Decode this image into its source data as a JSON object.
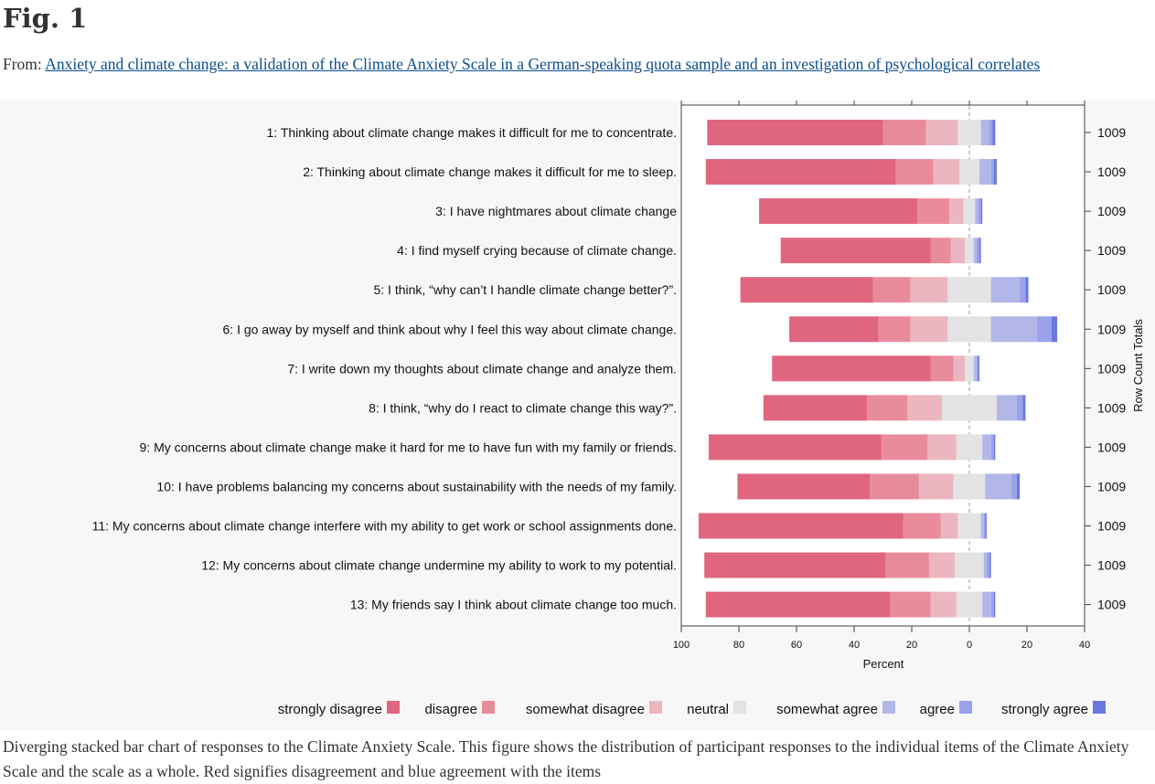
{
  "header": {
    "fig_title": "Fig. 1",
    "from_prefix": "From: ",
    "article_link": "Anxiety and climate change: a validation of the Climate Anxiety Scale in a German-speaking quota sample and an investigation of psychological correlates"
  },
  "caption": "Diverging stacked bar chart of responses to the Climate Anxiety Scale. This figure shows the distribution of participant responses to the individual items of the Climate Anxiety Scale and the scale as a whole. Red signifies disagreement and blue agreement with the items",
  "colors": {
    "strongly_disagree": "#e0667f",
    "disagree": "#e88c9c",
    "somewhat_disagree": "#ebb6bf",
    "neutral": "#e3e3e3",
    "somewhat_agree": "#b3b7e8",
    "agree": "#9aa2ea",
    "strongly_agree": "#6b78e0"
  },
  "chart_data": {
    "type": "bar",
    "subtype": "diverging-stacked-horizontal",
    "xlabel": "Percent",
    "right_axis_label": "Row Count Totals",
    "xlim": [
      -100,
      40
    ],
    "x_ticks": [
      -100,
      -80,
      -60,
      -40,
      -20,
      0,
      20,
      40
    ],
    "x_tick_labels": [
      "100",
      "80",
      "60",
      "40",
      "20",
      "0",
      "20",
      "40"
    ],
    "grid": false,
    "legend_position": "bottom",
    "series": [
      {
        "name": "strongly disagree",
        "values": [
          61,
          66,
          55,
          52,
          46,
          31,
          55,
          36,
          60,
          46,
          71,
          63,
          64
        ]
      },
      {
        "name": "disagree",
        "values": [
          15,
          13,
          11,
          7,
          13,
          11,
          8,
          14,
          16,
          17,
          13,
          15,
          14
        ]
      },
      {
        "name": "somewhat disagree",
        "values": [
          11,
          9,
          5,
          5,
          13,
          13,
          4,
          12,
          10,
          12,
          6,
          9,
          9
        ]
      },
      {
        "name": "neutral",
        "values": [
          8,
          7,
          4,
          3,
          15,
          15,
          3,
          19,
          9,
          11,
          8,
          10,
          9
        ]
      },
      {
        "name": "somewhat agree",
        "values": [
          3,
          4,
          1,
          1,
          10,
          16,
          1,
          7,
          3,
          9,
          1,
          1,
          3
        ]
      },
      {
        "name": "agree",
        "values": [
          1,
          1,
          1,
          1,
          2,
          5,
          0.5,
          2,
          1,
          2,
          0.5,
          1,
          1
        ]
      },
      {
        "name": "strongly agree",
        "values": [
          1,
          1,
          0.5,
          0.5,
          1,
          2,
          0.5,
          1,
          0.5,
          1,
          0.5,
          0.5,
          0.5
        ]
      }
    ],
    "items": [
      "1: Thinking about climate change makes it difficult for me to concentrate.",
      "2: Thinking about climate change makes it difficult for me to sleep.",
      "3: I have nightmares about climate change",
      "4: I find myself crying because of climate change.",
      "5: I think, “why can’t I handle climate change better?”.",
      "6: I go away by myself and think about why I feel this way about climate change.",
      "7: I write down my thoughts about climate change and analyze them.",
      "8: I think, “why do I react to climate change this way?”.",
      "9: My concerns about climate change make it hard for me to have fun with my family or friends.",
      "10: I have problems balancing my concerns about sustainability with the needs of my family.",
      "11: My concerns about climate change interfere with my ability to get work or school assignments done.",
      "12: My concerns about climate change undermine my ability to work to my potential.",
      "13: My friends say I think about climate change too much."
    ],
    "row_totals": [
      "1009",
      "1009",
      "1009",
      "1009",
      "1009",
      "1009",
      "1009",
      "1009",
      "1009",
      "1009",
      "1009",
      "1009",
      "1009"
    ]
  }
}
